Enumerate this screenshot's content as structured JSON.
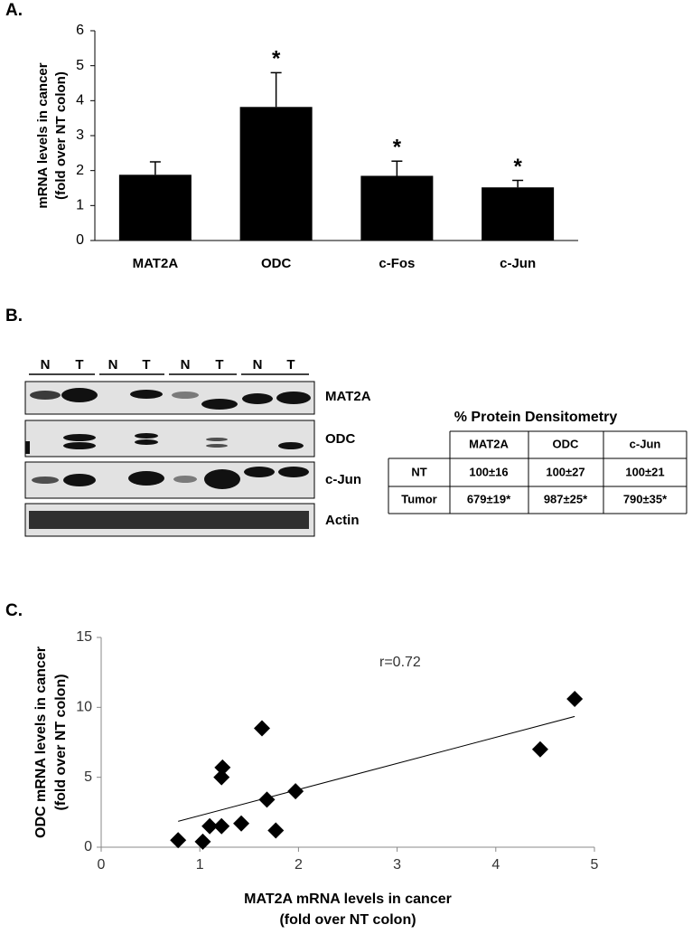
{
  "panel_labels": [
    "A.",
    "B.",
    "C."
  ],
  "chart_data": [
    {
      "type": "bar",
      "ylabel": [
        "mRNA levels in cancer",
        "(fold over NT colon)"
      ],
      "categories": [
        "MAT2A",
        "ODC",
        "c-Fos",
        "c-Jun"
      ],
      "values": [
        1.88,
        3.82,
        1.85,
        1.52
      ],
      "errors": [
        0.37,
        0.98,
        0.42,
        0.2
      ],
      "annotations": [
        null,
        "*",
        "*",
        "*"
      ],
      "color": "#000000",
      "ylim": [
        0,
        6
      ],
      "yticks": [
        0,
        1,
        2,
        3,
        4,
        5,
        6
      ]
    },
    {
      "type": "scatter",
      "xlabel": [
        "MAT2A mRNA levels in cancer",
        "(fold over NT colon)"
      ],
      "ylabel": [
        "ODC mRNA levels in cancer",
        "(fold over NT colon)"
      ],
      "annotation": "r=0.72",
      "x": [
        0.78,
        1.03,
        1.1,
        1.22,
        1.22,
        1.23,
        1.42,
        1.63,
        1.68,
        1.77,
        1.97,
        4.45,
        4.8
      ],
      "values": [
        0.5,
        0.4,
        1.5,
        1.5,
        5.0,
        5.7,
        1.7,
        8.5,
        3.4,
        1.2,
        4.0,
        7.0,
        10.6
      ],
      "trendline": {
        "x": [
          0.78,
          4.8
        ],
        "y": [
          1.85,
          9.35
        ]
      },
      "color": "#000000",
      "xlim": [
        0,
        5
      ],
      "xticks": [
        0,
        1,
        2,
        3,
        4,
        5
      ],
      "ylim": [
        0,
        15
      ],
      "yticks": [
        0,
        5,
        10,
        15
      ]
    }
  ],
  "blot": {
    "lane_labels": [
      "N",
      "T",
      "N",
      "T",
      "N",
      "T",
      "N",
      "T"
    ],
    "row_labels": [
      "MAT2A",
      "ODC",
      "c-Jun",
      "Actin"
    ]
  },
  "table": {
    "title": "% Protein Densitometry",
    "header": [
      "MAT2A",
      "ODC",
      "c-Jun"
    ],
    "rows": [
      [
        "NT",
        "100±16",
        "100±27",
        "100±21"
      ],
      [
        "Tumor",
        "679±19*",
        "987±25*",
        "790±35*"
      ]
    ]
  }
}
